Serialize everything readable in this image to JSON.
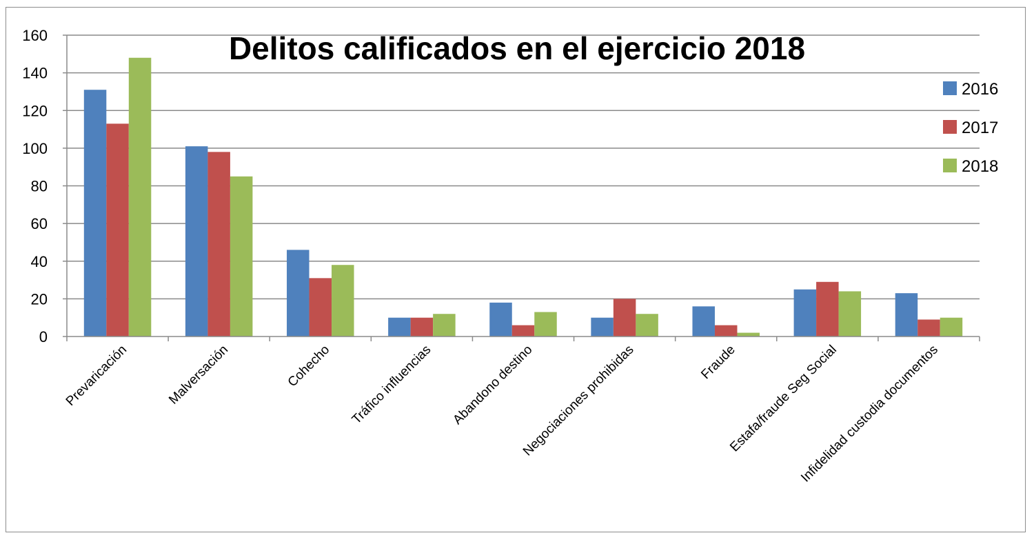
{
  "chart_data": {
    "type": "bar",
    "title": "Delitos calificados en el ejercicio 2018",
    "categories": [
      "Prevaricación",
      "Malversación",
      "Cohecho",
      "Tráfico influencias",
      "Abandono destino",
      "Negociaciones prohibidas",
      "Fraude",
      "Estafa/fraude Seg Social",
      "Infidelidad custodia documentos"
    ],
    "series": [
      {
        "name": "2016",
        "color": "#4f81bd",
        "values": [
          131,
          101,
          46,
          10,
          18,
          10,
          16,
          25,
          23
        ]
      },
      {
        "name": "2017",
        "color": "#c0504d",
        "values": [
          113,
          98,
          31,
          10,
          6,
          20,
          6,
          29,
          9
        ]
      },
      {
        "name": "2018",
        "color": "#9bbb59",
        "values": [
          148,
          85,
          38,
          12,
          13,
          12,
          2,
          24,
          10
        ]
      }
    ],
    "ylim": [
      0,
      160
    ],
    "yticks": [
      0,
      20,
      40,
      60,
      80,
      100,
      120,
      140,
      160
    ],
    "grid": true,
    "legend": "right"
  }
}
